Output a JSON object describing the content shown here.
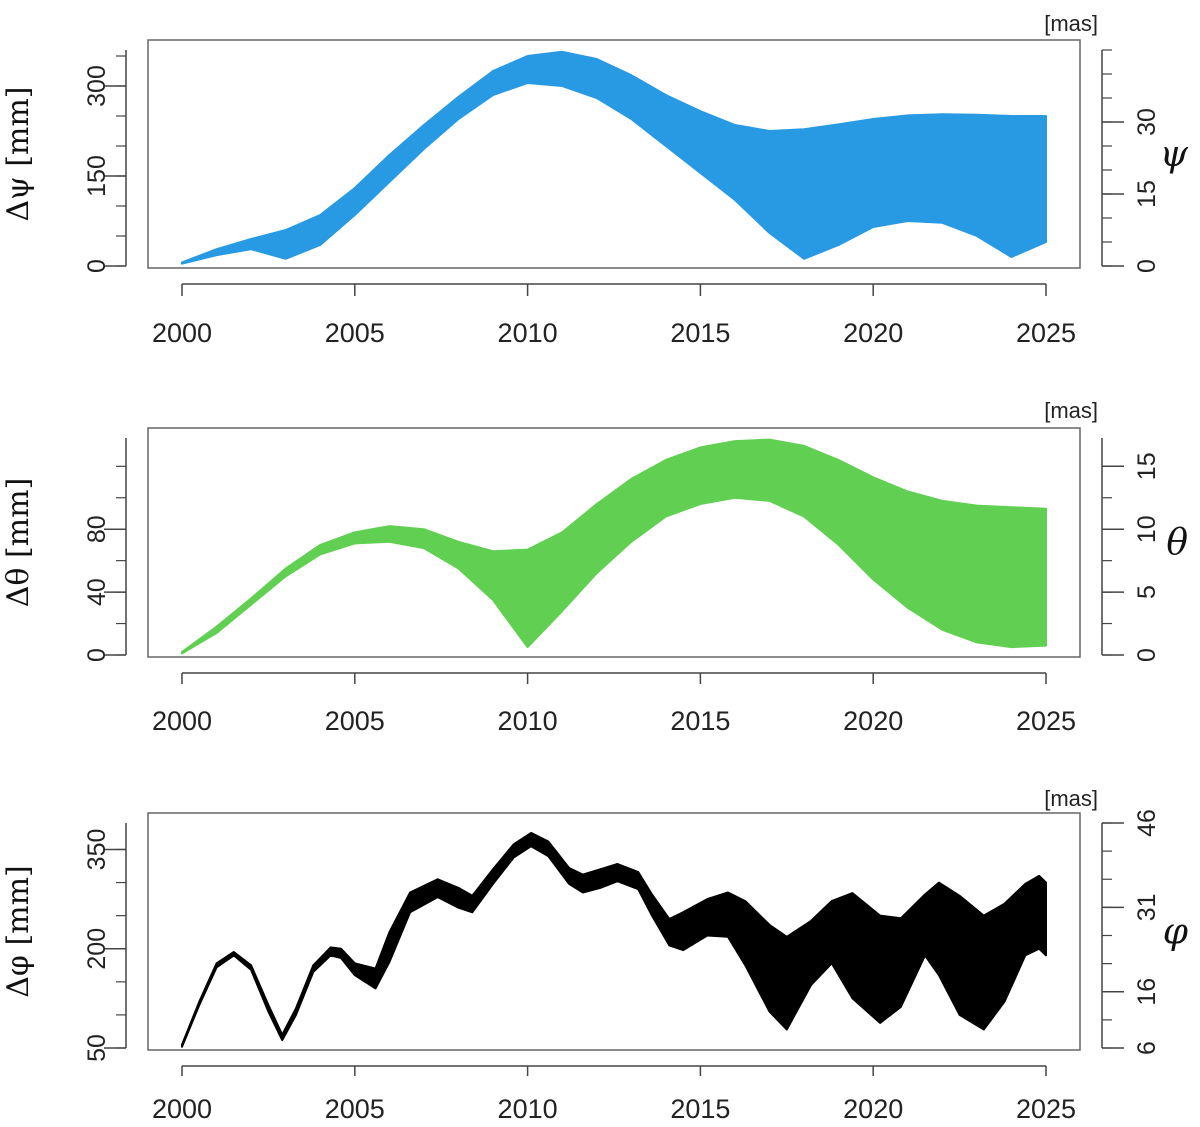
{
  "chart_data": [
    {
      "type": "area",
      "color": "#2899e3",
      "ylabel": "Δψ [mm]",
      "y2label": "ψ",
      "y2unit": "[mas]",
      "xlim": [
        2000,
        2025
      ],
      "xticks": [
        2000,
        2005,
        2010,
        2015,
        2020,
        2025
      ],
      "xtick_labels": [
        "2000",
        "2005",
        "2010",
        "2015",
        "2020",
        "2025"
      ],
      "ylim": [
        0,
        360
      ],
      "yticks": [
        0,
        150,
        300
      ],
      "ytick_labels": [
        "0",
        "150",
        "300"
      ],
      "y_minor_step": 50,
      "y2lim": [
        0,
        45
      ],
      "y2ticks": [
        0,
        15,
        30
      ],
      "y2tick_labels": [
        "0",
        "15",
        "30"
      ],
      "y2_minor_step": 5,
      "x": [
        2000,
        2001,
        2002,
        2003,
        2004,
        2005,
        2006,
        2007,
        2008,
        2009,
        2010,
        2011,
        2012,
        2013,
        2014,
        2015,
        2016,
        2017,
        2018,
        2019,
        2020,
        2021,
        2022,
        2023,
        2024,
        2025
      ],
      "upper": [
        6,
        28,
        45,
        60,
        85,
        130,
        185,
        235,
        282,
        325,
        350,
        357,
        345,
        318,
        285,
        258,
        235,
        225,
        228,
        236,
        245,
        251,
        253,
        252,
        250,
        250
      ],
      "lower": [
        4,
        18,
        28,
        12,
        35,
        85,
        140,
        195,
        245,
        285,
        305,
        300,
        280,
        245,
        200,
        155,
        110,
        55,
        12,
        35,
        65,
        75,
        72,
        50,
        15,
        40
      ]
    },
    {
      "type": "area",
      "color": "#61d052",
      "ylabel": "Δθ [mm]",
      "y2label": "θ",
      "y2unit": "[mas]",
      "xlim": [
        2000,
        2025
      ],
      "xticks": [
        2000,
        2005,
        2010,
        2015,
        2020,
        2025
      ],
      "xtick_labels": [
        "2000",
        "2005",
        "2010",
        "2015",
        "2020",
        "2025"
      ],
      "ylim": [
        0,
        138
      ],
      "yticks": [
        0,
        40,
        80
      ],
      "ytick_labels": [
        "0",
        "40",
        "80"
      ],
      "y_minor_step": 20,
      "y2lim": [
        0,
        17.25
      ],
      "y2ticks": [
        0,
        5,
        10,
        15
      ],
      "y2tick_labels": [
        "0",
        "5",
        "10",
        "15"
      ],
      "y2_minor_step": 2.5,
      "x": [
        2000,
        2001,
        2002,
        2003,
        2004,
        2005,
        2006,
        2007,
        2008,
        2009,
        2010,
        2011,
        2012,
        2013,
        2014,
        2015,
        2016,
        2017,
        2018,
        2019,
        2020,
        2021,
        2022,
        2023,
        2024,
        2025
      ],
      "upper": [
        2,
        18,
        36,
        55,
        70,
        78,
        82,
        80,
        72,
        66,
        67,
        78,
        96,
        112,
        124,
        132,
        136,
        137,
        133,
        124,
        113,
        104,
        98,
        95,
        94,
        93
      ],
      "lower": [
        1,
        14,
        32,
        50,
        64,
        71,
        72,
        68,
        55,
        35,
        5,
        28,
        52,
        72,
        88,
        96,
        100,
        98,
        88,
        70,
        48,
        30,
        16,
        8,
        5,
        6
      ]
    },
    {
      "type": "area",
      "color": "#000000",
      "ylabel": "Δφ [mm]",
      "y2label": "φ",
      "y2unit": "[mas]",
      "xlim": [
        2000,
        2025
      ],
      "xticks": [
        2000,
        2005,
        2010,
        2015,
        2020,
        2025
      ],
      "xtick_labels": [
        "2000",
        "2005",
        "2010",
        "2015",
        "2020",
        "2025"
      ],
      "ylim": [
        50,
        390
      ],
      "yticks": [
        50,
        200,
        350
      ],
      "ytick_labels": [
        "50",
        "200",
        "350"
      ],
      "y_minor_step": 50,
      "y2lim": [
        6,
        46
      ],
      "y2ticks": [
        6,
        16,
        31,
        46
      ],
      "y2tick_labels": [
        "6",
        "16",
        "31",
        "46"
      ],
      "y2_minor_step": 5,
      "x": [
        2000,
        2000.5,
        2001,
        2001.5,
        2002,
        2002.5,
        2002.9,
        2003.3,
        2003.8,
        2004.3,
        2004.6,
        2005.0,
        2005.6,
        2006.0,
        2006.6,
        2007.4,
        2008.0,
        2008.4,
        2009.0,
        2009.6,
        2010.1,
        2010.6,
        2011.2,
        2011.6,
        2012.1,
        2012.6,
        2013.2,
        2013.6,
        2014.1,
        2014.5,
        2015.2,
        2015.8,
        2016.3,
        2017.0,
        2017.5,
        2018.2,
        2018.8,
        2019.4,
        2020.2,
        2020.8,
        2021.5,
        2021.9,
        2022.5,
        2023.2,
        2023.8,
        2024.4,
        2024.8,
        2025
      ],
      "upper": [
        55,
        120,
        178,
        195,
        175,
        115,
        70,
        110,
        175,
        202,
        200,
        178,
        170,
        225,
        285,
        305,
        292,
        280,
        320,
        358,
        375,
        362,
        322,
        312,
        320,
        328,
        316,
        282,
        245,
        255,
        275,
        285,
        272,
        236,
        218,
        242,
        272,
        284,
        250,
        246,
        282,
        300,
        280,
        250,
        268,
        298,
        310,
        300
      ],
      "lower": [
        52,
        115,
        172,
        190,
        168,
        105,
        62,
        100,
        165,
        190,
        186,
        160,
        140,
        180,
        255,
        278,
        262,
        255,
        298,
        338,
        355,
        340,
        298,
        285,
        292,
        302,
        290,
        250,
        205,
        198,
        220,
        218,
        175,
        105,
        78,
        145,
        178,
        125,
        88,
        112,
        190,
        160,
        100,
        78,
        120,
        190,
        200,
        190
      ]
    }
  ]
}
